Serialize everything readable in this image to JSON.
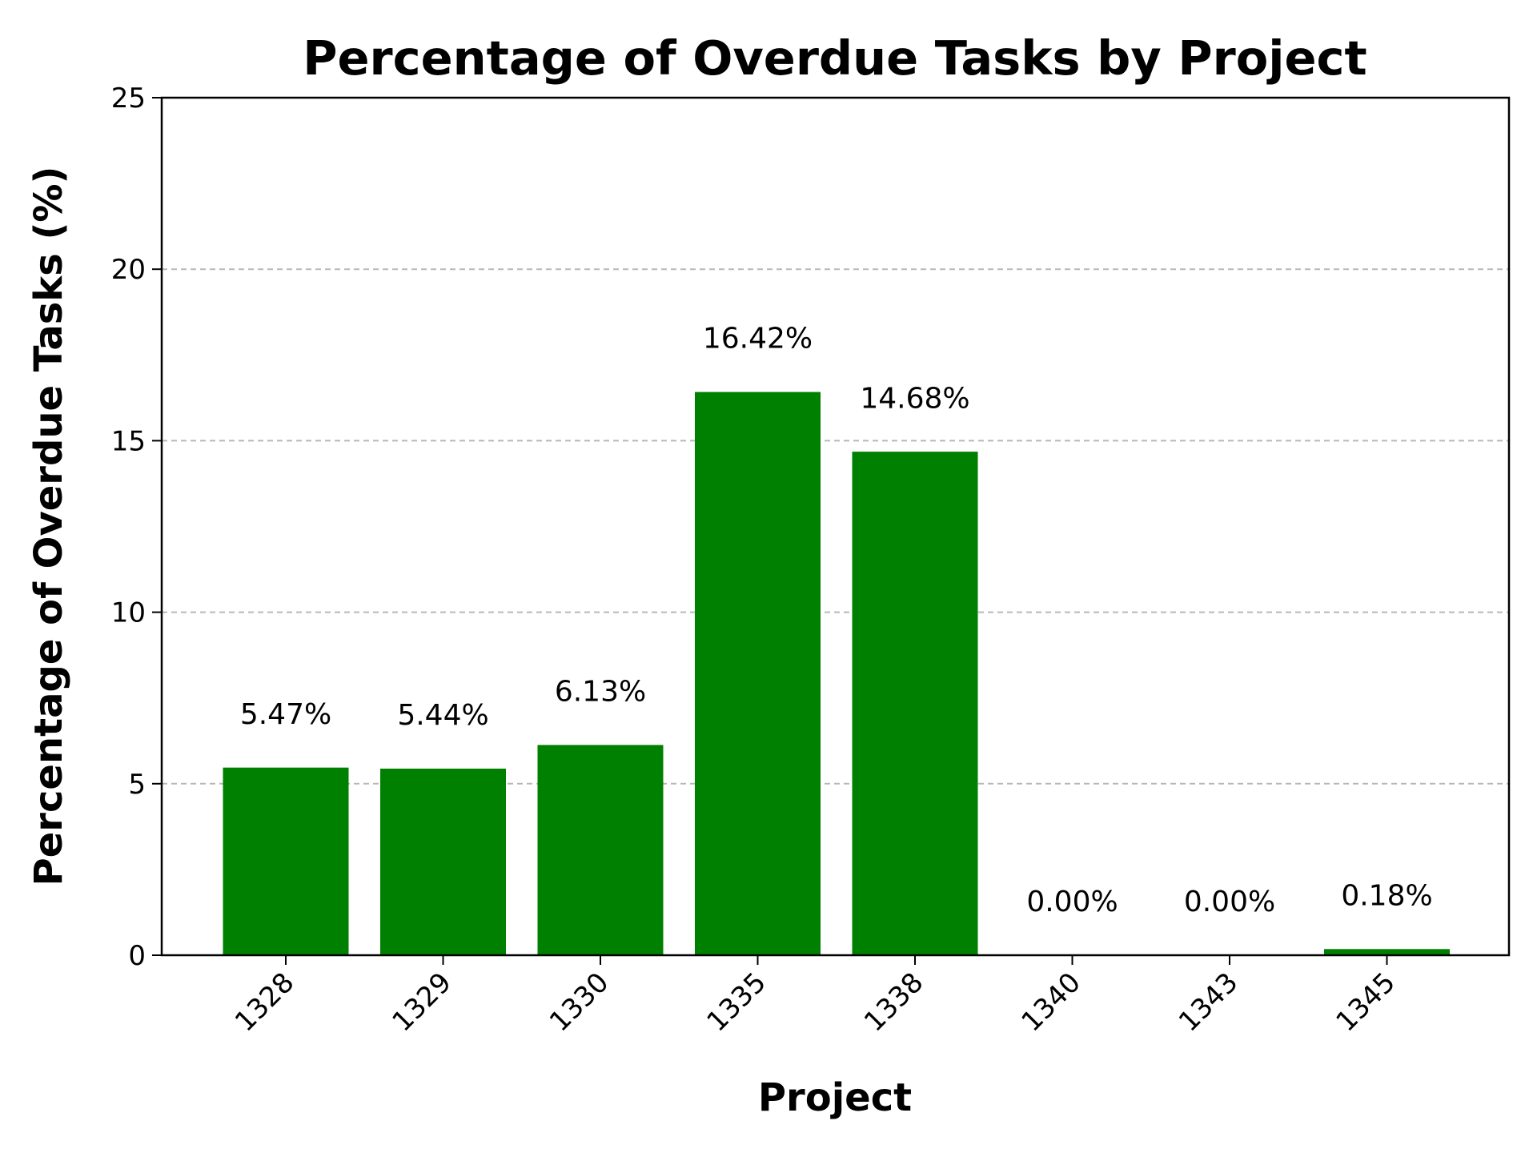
{
  "chart_data": {
    "type": "bar",
    "title": "Percentage of Overdue Tasks by Project",
    "xlabel": "Project",
    "ylabel": "Percentage of Overdue Tasks (%)",
    "categories": [
      "1328",
      "1329",
      "1330",
      "1335",
      "1338",
      "1340",
      "1343",
      "1345"
    ],
    "values": [
      5.47,
      5.44,
      6.13,
      16.42,
      14.68,
      0.0,
      0.0,
      0.18
    ],
    "data_labels": [
      "5.47%",
      "5.44%",
      "6.13%",
      "16.42%",
      "14.68%",
      "0.00%",
      "0.00%",
      "0.18%"
    ],
    "ylim": [
      0,
      25
    ],
    "yticks": [
      0,
      5,
      10,
      15,
      20,
      25
    ],
    "grid": "y-axis dashed",
    "bar_color": "#008000",
    "legend": "none"
  }
}
